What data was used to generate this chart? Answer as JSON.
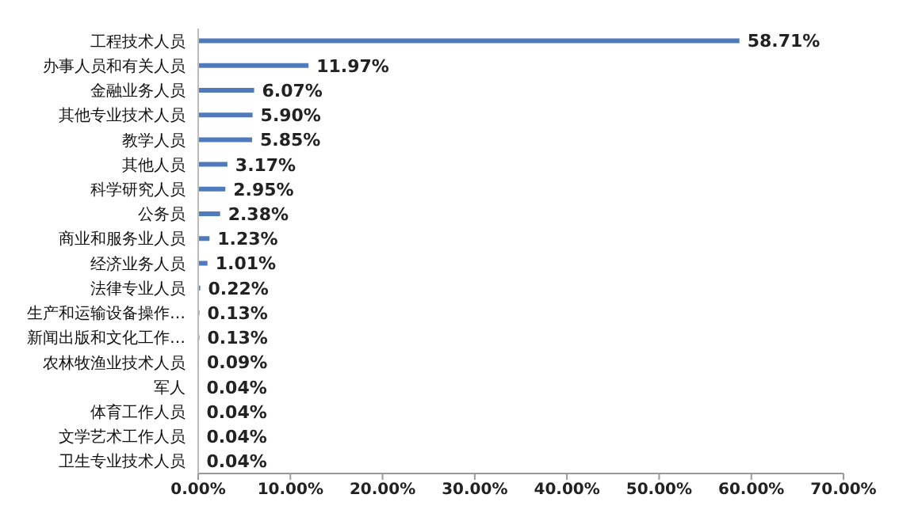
{
  "chart_data": {
    "type": "bar",
    "orientation": "horizontal",
    "categories": [
      "工程技术人员",
      "办事人员和有关人员",
      "金融业务人员",
      "其他专业技术人员",
      "教学人员",
      "其他人员",
      "科学研究人员",
      "公务员",
      "商业和服务业人员",
      "经济业务人员",
      "法律专业人员",
      "生产和运输设备操作…",
      "新闻出版和文化工作…",
      "农林牧渔业技术人员",
      "军人",
      "体育工作人员",
      "文学艺术工作人员",
      "卫生专业技术人员"
    ],
    "values": [
      58.71,
      11.97,
      6.07,
      5.9,
      5.85,
      3.17,
      2.95,
      2.38,
      1.23,
      1.01,
      0.22,
      0.13,
      0.13,
      0.09,
      0.04,
      0.04,
      0.04,
      0.04
    ],
    "value_labels": [
      "58.71%",
      "11.97%",
      "6.07%",
      "5.90%",
      "5.85%",
      "3.17%",
      "2.95%",
      "2.38%",
      "1.23%",
      "1.01%",
      "0.22%",
      "0.13%",
      "0.13%",
      "0.09%",
      "0.04%",
      "0.04%",
      "0.04%",
      "0.04%"
    ],
    "color": "#4f7bbd",
    "xlim": [
      0,
      70
    ],
    "xticks": [
      {
        "value": 0,
        "label": "0.00%"
      },
      {
        "value": 10,
        "label": "10.00%"
      },
      {
        "value": 20,
        "label": "20.00%"
      },
      {
        "value": 30,
        "label": "30.00%"
      },
      {
        "value": 40,
        "label": "40.00%"
      },
      {
        "value": 50,
        "label": "50.00%"
      },
      {
        "value": 60,
        "label": "60.00%"
      },
      {
        "value": 70,
        "label": "70.00%"
      }
    ],
    "grid": false,
    "legend": false
  }
}
